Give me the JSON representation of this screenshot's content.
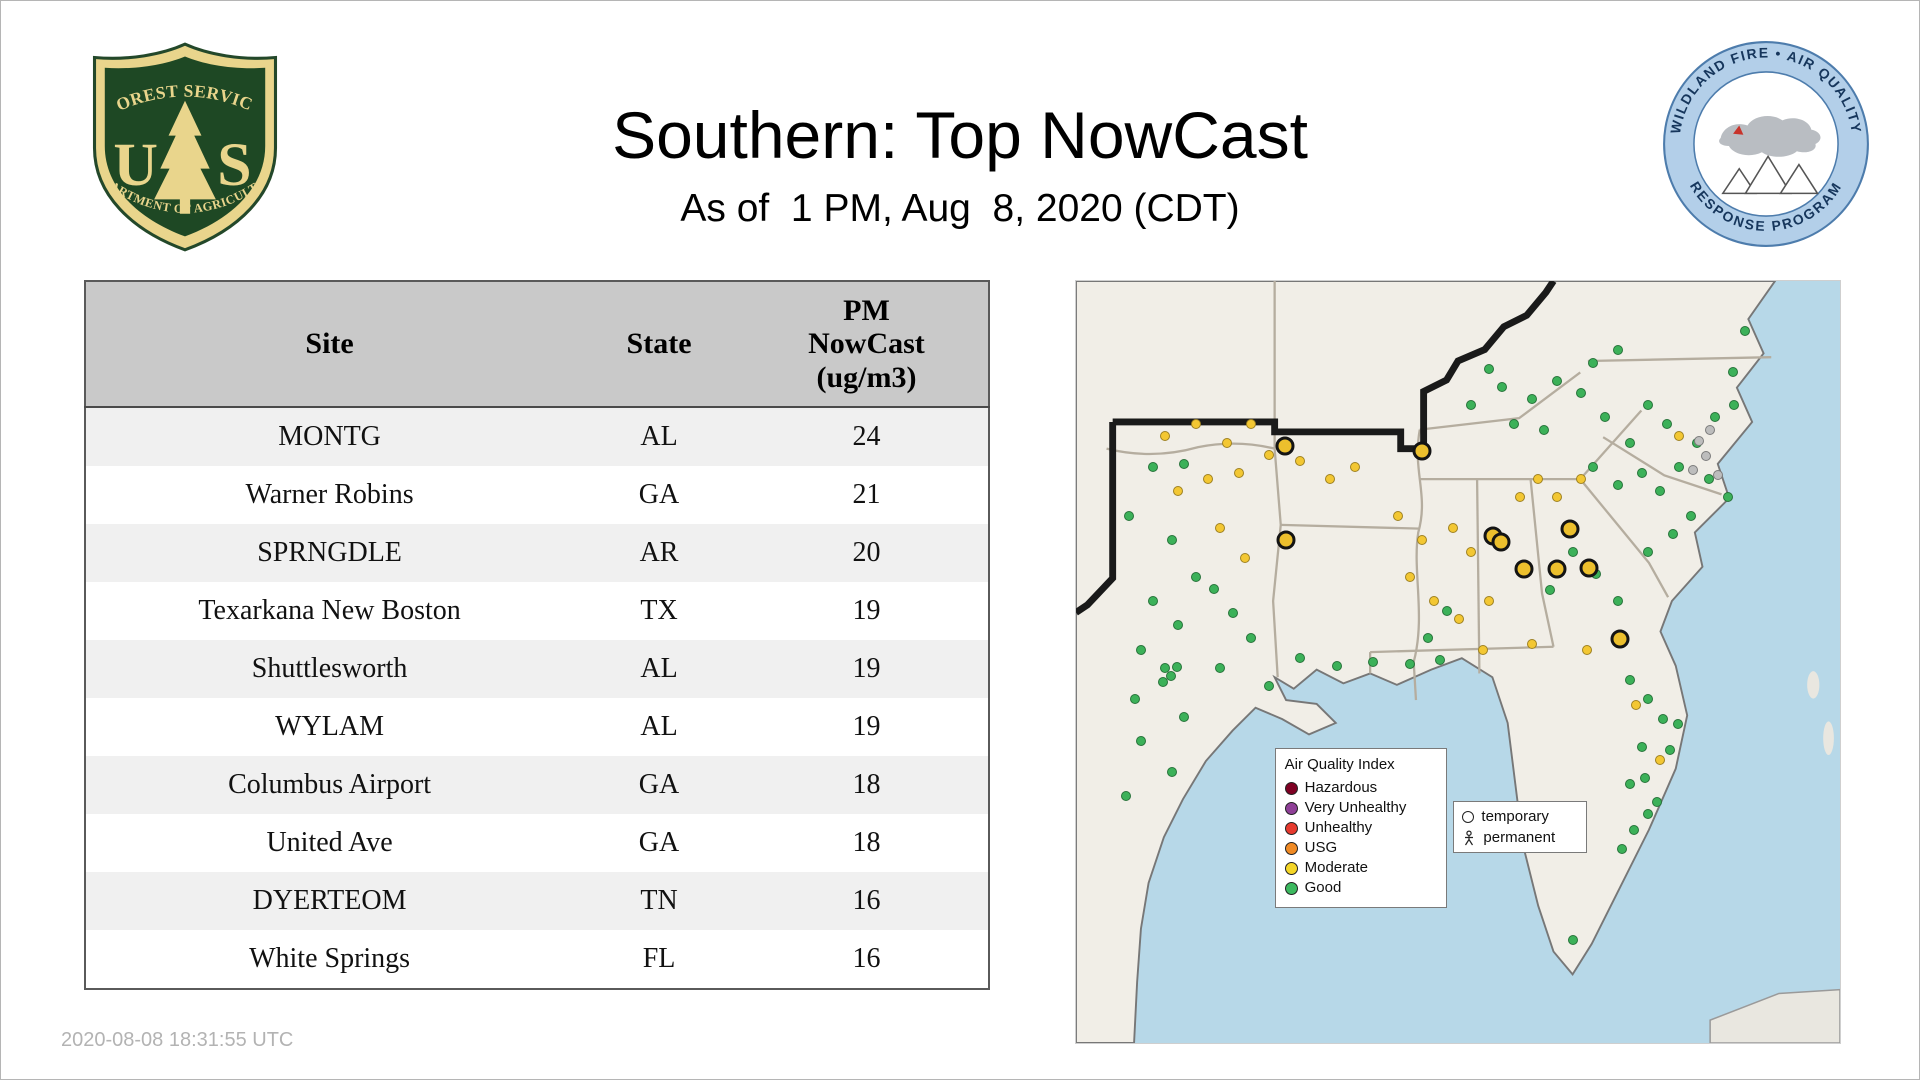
{
  "header": {
    "title": "Southern: Top NowCast",
    "subtitle": "As of  1 PM, Aug  8, 2020 (CDT)"
  },
  "footer": {
    "timestamp": "2020-08-08 18:31:55 UTC"
  },
  "logos": {
    "forest_service": {
      "top_arc": "FOREST SERVICE",
      "letter_u": "U",
      "letter_s": "S",
      "bottom_arc": "DEPARTMENT OF AGRICULTURE",
      "shield_green": "#1e4824",
      "shield_gold": "#e9d58c"
    },
    "air_quality_program": {
      "top_arc": "WILDLAND FIRE • AIR QUALITY",
      "bottom_arc": "RESPONSE PROGRAM",
      "ring_blue": "#b3cfe9",
      "text_blue": "#16365c"
    }
  },
  "table": {
    "columns": [
      "Site",
      "State",
      "PM\nNowCast\n(ug/m3)"
    ],
    "rows": [
      {
        "site": "MONTG",
        "state": "AL",
        "nowcast": "24"
      },
      {
        "site": "Warner Robins",
        "state": "GA",
        "nowcast": "21"
      },
      {
        "site": "SPRNGDLE",
        "state": "AR",
        "nowcast": "20"
      },
      {
        "site": "Texarkana New Boston",
        "state": "TX",
        "nowcast": "19"
      },
      {
        "site": "Shuttlesworth",
        "state": "AL",
        "nowcast": "19"
      },
      {
        "site": "WYLAM",
        "state": "AL",
        "nowcast": "19"
      },
      {
        "site": "Columbus Airport",
        "state": "GA",
        "nowcast": "18"
      },
      {
        "site": "United Ave",
        "state": "GA",
        "nowcast": "18"
      },
      {
        "site": "DYERTEOM",
        "state": "TN",
        "nowcast": "16"
      },
      {
        "site": "White Springs",
        "state": "FL",
        "nowcast": "16"
      }
    ]
  },
  "map": {
    "ocean_color": "#b7d8e8",
    "land_color": "#f1eee7",
    "aqi_legend": {
      "title": "Air Quality Index",
      "items": [
        {
          "label": "Hazardous",
          "color": "#7e0023"
        },
        {
          "label": "Very Unhealthy",
          "color": "#8f3f97"
        },
        {
          "label": "Unhealthy",
          "color": "#e63a2e"
        },
        {
          "label": "USG",
          "color": "#f08a24"
        },
        {
          "label": "Moderate",
          "color": "#f4d527"
        },
        {
          "label": "Good",
          "color": "#3cb95f"
        }
      ]
    },
    "type_legend": {
      "temporary": "temporary",
      "permanent": "permanent"
    },
    "marker_colors": {
      "good": "#3cb159",
      "moderate": "#f3c733",
      "nodata": "#bdbdbd",
      "temporary": "#ecbf2d"
    },
    "markers": [
      {
        "x": 10.1,
        "y": 24.4,
        "kind": "good"
      },
      {
        "x": 14.1,
        "y": 24.0,
        "kind": "good"
      },
      {
        "x": 6.9,
        "y": 30.8,
        "kind": "good"
      },
      {
        "x": 12.5,
        "y": 34.0,
        "kind": "good"
      },
      {
        "x": 15.7,
        "y": 38.8,
        "kind": "good"
      },
      {
        "x": 10.1,
        "y": 42.0,
        "kind": "good"
      },
      {
        "x": 13.3,
        "y": 45.2,
        "kind": "good"
      },
      {
        "x": 18.1,
        "y": 40.4,
        "kind": "good"
      },
      {
        "x": 20.5,
        "y": 43.6,
        "kind": "good"
      },
      {
        "x": 8.5,
        "y": 48.4,
        "kind": "good"
      },
      {
        "x": 11.7,
        "y": 50.8,
        "kind": "good"
      },
      {
        "x": 12.4,
        "y": 51.8,
        "kind": "good"
      },
      {
        "x": 13.2,
        "y": 50.6,
        "kind": "good"
      },
      {
        "x": 11.4,
        "y": 52.6,
        "kind": "good"
      },
      {
        "x": 7.7,
        "y": 54.8,
        "kind": "good"
      },
      {
        "x": 14.1,
        "y": 57.2,
        "kind": "good"
      },
      {
        "x": 18.9,
        "y": 50.8,
        "kind": "good"
      },
      {
        "x": 22.9,
        "y": 46.8,
        "kind": "good"
      },
      {
        "x": 8.5,
        "y": 60.4,
        "kind": "good"
      },
      {
        "x": 12.5,
        "y": 64.4,
        "kind": "good"
      },
      {
        "x": 6.6,
        "y": 67.6,
        "kind": "good"
      },
      {
        "x": 25.3,
        "y": 53.2,
        "kind": "good"
      },
      {
        "x": 29.3,
        "y": 49.5,
        "kind": "good"
      },
      {
        "x": 34.1,
        "y": 50.5,
        "kind": "good"
      },
      {
        "x": 38.9,
        "y": 50.0,
        "kind": "good"
      },
      {
        "x": 43.7,
        "y": 50.2,
        "kind": "good"
      },
      {
        "x": 47.7,
        "y": 49.8,
        "kind": "good"
      },
      {
        "x": 46.1,
        "y": 46.8,
        "kind": "good"
      },
      {
        "x": 48.5,
        "y": 43.3,
        "kind": "good"
      },
      {
        "x": 51.7,
        "y": 16.3,
        "kind": "good"
      },
      {
        "x": 55.7,
        "y": 13.9,
        "kind": "good"
      },
      {
        "x": 59.7,
        "y": 15.5,
        "kind": "good"
      },
      {
        "x": 62.9,
        "y": 13.1,
        "kind": "good"
      },
      {
        "x": 66.1,
        "y": 14.7,
        "kind": "good"
      },
      {
        "x": 57.3,
        "y": 18.8,
        "kind": "good"
      },
      {
        "x": 61.3,
        "y": 19.6,
        "kind": "good"
      },
      {
        "x": 54.1,
        "y": 11.5,
        "kind": "good"
      },
      {
        "x": 67.7,
        "y": 10.7,
        "kind": "good"
      },
      {
        "x": 70.9,
        "y": 9.1,
        "kind": "good"
      },
      {
        "x": 69.3,
        "y": 17.9,
        "kind": "good"
      },
      {
        "x": 72.5,
        "y": 21.2,
        "kind": "good"
      },
      {
        "x": 74.9,
        "y": 16.3,
        "kind": "good"
      },
      {
        "x": 77.3,
        "y": 18.8,
        "kind": "good"
      },
      {
        "x": 67.7,
        "y": 24.4,
        "kind": "good"
      },
      {
        "x": 70.9,
        "y": 26.8,
        "kind": "good"
      },
      {
        "x": 74.1,
        "y": 25.2,
        "kind": "good"
      },
      {
        "x": 76.5,
        "y": 27.6,
        "kind": "good"
      },
      {
        "x": 78.9,
        "y": 24.4,
        "kind": "good"
      },
      {
        "x": 81.3,
        "y": 21.2,
        "kind": "good"
      },
      {
        "x": 83.7,
        "y": 17.9,
        "kind": "good"
      },
      {
        "x": 86.1,
        "y": 16.3,
        "kind": "good"
      },
      {
        "x": 86.0,
        "y": 12.0,
        "kind": "good"
      },
      {
        "x": 87.5,
        "y": 6.5,
        "kind": "good"
      },
      {
        "x": 82.9,
        "y": 26.0,
        "kind": "good"
      },
      {
        "x": 85.3,
        "y": 28.4,
        "kind": "good"
      },
      {
        "x": 80.5,
        "y": 30.8,
        "kind": "good"
      },
      {
        "x": 78.1,
        "y": 33.2,
        "kind": "good"
      },
      {
        "x": 74.9,
        "y": 35.6,
        "kind": "good"
      },
      {
        "x": 62.0,
        "y": 40.5,
        "kind": "good"
      },
      {
        "x": 65.0,
        "y": 35.5,
        "kind": "good"
      },
      {
        "x": 68.0,
        "y": 38.5,
        "kind": "good"
      },
      {
        "x": 71.0,
        "y": 42.0,
        "kind": "good"
      },
      {
        "x": 72.5,
        "y": 52.4,
        "kind": "good"
      },
      {
        "x": 74.9,
        "y": 54.8,
        "kind": "good"
      },
      {
        "x": 76.8,
        "y": 57.5,
        "kind": "good"
      },
      {
        "x": 74.1,
        "y": 61.2,
        "kind": "good"
      },
      {
        "x": 74.5,
        "y": 65.2,
        "kind": "good"
      },
      {
        "x": 76.0,
        "y": 68.4,
        "kind": "good"
      },
      {
        "x": 74.9,
        "y": 70.0,
        "kind": "good"
      },
      {
        "x": 72.5,
        "y": 66.0,
        "kind": "good"
      },
      {
        "x": 71.5,
        "y": 74.5,
        "kind": "good"
      },
      {
        "x": 73.0,
        "y": 72.0,
        "kind": "good"
      },
      {
        "x": 65.0,
        "y": 86.5,
        "kind": "good"
      },
      {
        "x": 77.8,
        "y": 61.5,
        "kind": "good"
      },
      {
        "x": 78.8,
        "y": 58.2,
        "kind": "good"
      },
      {
        "x": 11.7,
        "y": 20.4,
        "kind": "moderate"
      },
      {
        "x": 15.7,
        "y": 18.8,
        "kind": "moderate"
      },
      {
        "x": 19.7,
        "y": 21.2,
        "kind": "moderate"
      },
      {
        "x": 22.9,
        "y": 18.8,
        "kind": "moderate"
      },
      {
        "x": 25.3,
        "y": 22.8,
        "kind": "moderate"
      },
      {
        "x": 17.3,
        "y": 26.0,
        "kind": "moderate"
      },
      {
        "x": 21.3,
        "y": 25.2,
        "kind": "moderate"
      },
      {
        "x": 29.3,
        "y": 23.6,
        "kind": "moderate"
      },
      {
        "x": 33.3,
        "y": 26.0,
        "kind": "moderate"
      },
      {
        "x": 36.5,
        "y": 24.4,
        "kind": "moderate"
      },
      {
        "x": 42.1,
        "y": 30.8,
        "kind": "moderate"
      },
      {
        "x": 45.3,
        "y": 34.0,
        "kind": "moderate"
      },
      {
        "x": 49.3,
        "y": 32.4,
        "kind": "moderate"
      },
      {
        "x": 51.7,
        "y": 35.6,
        "kind": "moderate"
      },
      {
        "x": 43.7,
        "y": 38.8,
        "kind": "moderate"
      },
      {
        "x": 46.9,
        "y": 42.0,
        "kind": "moderate"
      },
      {
        "x": 50.1,
        "y": 44.4,
        "kind": "moderate"
      },
      {
        "x": 54.1,
        "y": 42.0,
        "kind": "moderate"
      },
      {
        "x": 60.5,
        "y": 26.0,
        "kind": "moderate"
      },
      {
        "x": 62.9,
        "y": 28.4,
        "kind": "moderate"
      },
      {
        "x": 66.1,
        "y": 26.0,
        "kind": "moderate"
      },
      {
        "x": 58.1,
        "y": 28.4,
        "kind": "moderate"
      },
      {
        "x": 13.3,
        "y": 27.6,
        "kind": "moderate"
      },
      {
        "x": 18.9,
        "y": 32.4,
        "kind": "moderate"
      },
      {
        "x": 22.1,
        "y": 36.4,
        "kind": "moderate"
      },
      {
        "x": 53.3,
        "y": 48.4,
        "kind": "moderate"
      },
      {
        "x": 59.7,
        "y": 47.6,
        "kind": "moderate"
      },
      {
        "x": 66.9,
        "y": 48.4,
        "kind": "moderate"
      },
      {
        "x": 76.5,
        "y": 62.8,
        "kind": "moderate"
      },
      {
        "x": 73.3,
        "y": 55.6,
        "kind": "moderate"
      },
      {
        "x": 78.9,
        "y": 20.4,
        "kind": "moderate"
      },
      {
        "x": 82.5,
        "y": 23.0,
        "kind": "nodata"
      },
      {
        "x": 84.0,
        "y": 25.5,
        "kind": "nodata"
      },
      {
        "x": 81.5,
        "y": 21.0,
        "kind": "nodata"
      },
      {
        "x": 83.0,
        "y": 19.5,
        "kind": "nodata"
      },
      {
        "x": 80.8,
        "y": 24.8,
        "kind": "nodata"
      },
      {
        "x": 27.4,
        "y": 21.6,
        "kind": "temporary"
      },
      {
        "x": 45.3,
        "y": 22.3,
        "kind": "temporary"
      },
      {
        "x": 27.5,
        "y": 34.0,
        "kind": "temporary"
      },
      {
        "x": 54.6,
        "y": 33.5,
        "kind": "temporary"
      },
      {
        "x": 55.6,
        "y": 34.2,
        "kind": "temporary"
      },
      {
        "x": 64.6,
        "y": 32.5,
        "kind": "temporary"
      },
      {
        "x": 58.7,
        "y": 37.8,
        "kind": "temporary"
      },
      {
        "x": 63.0,
        "y": 37.8,
        "kind": "temporary"
      },
      {
        "x": 67.2,
        "y": 37.7,
        "kind": "temporary"
      },
      {
        "x": 71.2,
        "y": 47.0,
        "kind": "temporary"
      }
    ]
  }
}
